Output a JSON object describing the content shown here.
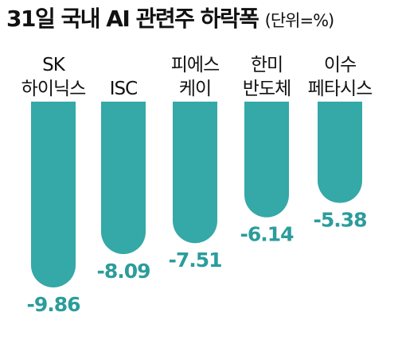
{
  "chart_data": {
    "type": "bar",
    "title": "31일 국내 AI 관련주 하락폭",
    "unit_label": "(단위=%)",
    "categories": [
      [
        "SK",
        "하이닉스"
      ],
      [
        "ISC"
      ],
      [
        "피에스",
        "케이"
      ],
      [
        "한미",
        "반도체"
      ],
      [
        "이수",
        "페타시스"
      ]
    ],
    "values": [
      -9.86,
      -8.09,
      -7.51,
      -6.14,
      -5.38
    ],
    "value_labels": [
      "-9.86",
      "-8.09",
      "-7.51",
      "-6.14",
      "-5.38"
    ],
    "bar_color": "#35a8a8",
    "label_color": "#2c9c9c"
  }
}
